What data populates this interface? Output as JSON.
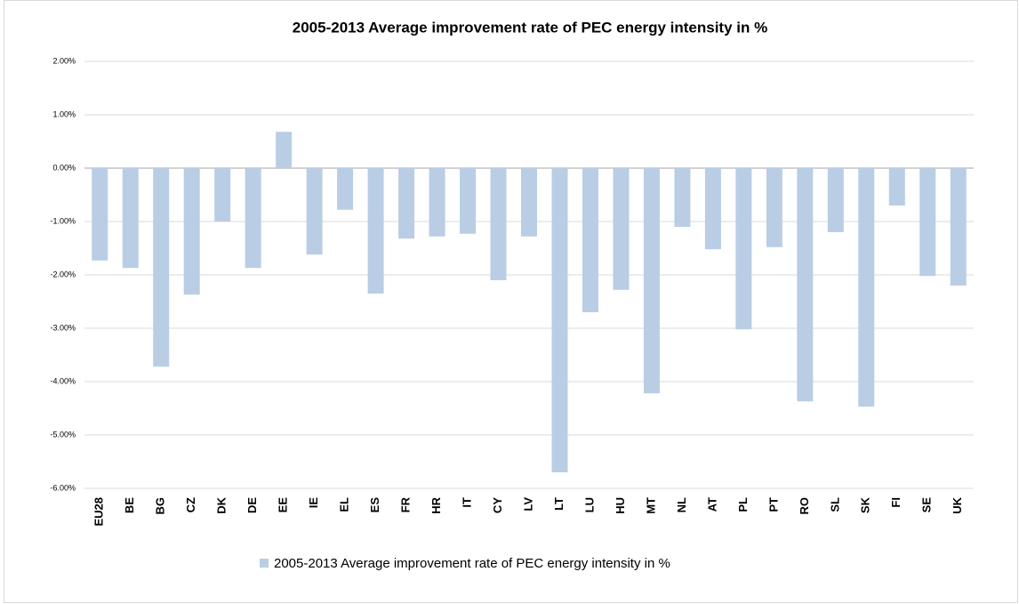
{
  "chart_data": {
    "type": "bar",
    "title": "2005-2013 Average improvement rate of PEC energy intensity in %",
    "categories": [
      "EU28",
      "BE",
      "BG",
      "CZ",
      "DK",
      "DE",
      "EE",
      "IE",
      "EL",
      "ES",
      "FR",
      "HR",
      "IT",
      "CY",
      "LV",
      "LT",
      "LU",
      "HU",
      "MT",
      "NL",
      "AT",
      "PL",
      "PT",
      "RO",
      "SL",
      "SK",
      "FI",
      "SE",
      "UK"
    ],
    "series": [
      {
        "name": "2005-2013 Average improvement rate of PEC energy intensity in %",
        "color": "#b9cde5",
        "values": [
          -1.73,
          -1.87,
          -3.72,
          -2.37,
          -1.0,
          -1.87,
          0.68,
          -1.62,
          -0.78,
          -2.35,
          -1.32,
          -1.28,
          -1.23,
          -2.1,
          -1.28,
          -5.7,
          -2.7,
          -2.28,
          -4.22,
          -1.1,
          -1.52,
          -3.02,
          -1.48,
          -4.37,
          -1.2,
          -4.47,
          -0.7,
          -2.02,
          -2.2
        ]
      }
    ],
    "ylim": [
      -6,
      2
    ],
    "yticks": [
      {
        "value": 2,
        "label": "2.00%"
      },
      {
        "value": 1,
        "label": "1.00%"
      },
      {
        "value": 0,
        "label": "0.00%"
      },
      {
        "value": -1,
        "label": "-1.00%"
      },
      {
        "value": -2,
        "label": "-2.00%"
      },
      {
        "value": -3,
        "label": "-3.00%"
      },
      {
        "value": -4,
        "label": "-4.00%"
      },
      {
        "value": -5,
        "label": "-5.00%"
      },
      {
        "value": -6,
        "label": "-6.00%"
      }
    ],
    "grid": true,
    "legend": "bottom"
  }
}
